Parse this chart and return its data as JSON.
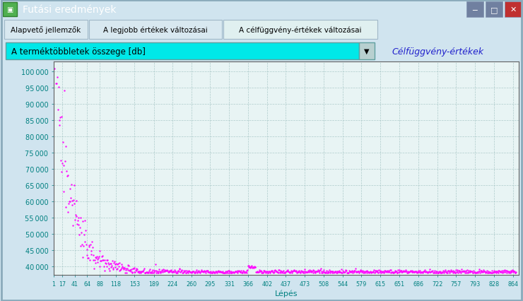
{
  "title": "Futási eredmények",
  "dropdown_label": "A terméktöbbletek összege [db]",
  "legend_label": "Célfüggvény-értékek",
  "xlabel": "Lépés",
  "tab_labels": [
    "Alapvető jellemzők",
    "A legjobb értékek változásai",
    "A célfüggvény-értékek változásai"
  ],
  "xtick_vals": [
    1,
    17,
    41,
    64,
    88,
    118,
    153,
    189,
    224,
    260,
    295,
    331,
    366,
    402,
    437,
    473,
    508,
    544,
    579,
    615,
    651,
    686,
    722,
    757,
    793,
    828,
    864
  ],
  "ytick_vals": [
    40000,
    45000,
    50000,
    55000,
    60000,
    65000,
    70000,
    75000,
    80000,
    85000,
    90000,
    95000,
    100000
  ],
  "ylim": [
    37500,
    103000
  ],
  "xlim": [
    1,
    875
  ],
  "plot_color": "#FF00FF",
  "plot_bg": "#E8F4F4",
  "outer_bg": "#D0E4EF",
  "titlebar_bg": "#1A5EA8",
  "titlebar_text": "white",
  "tab_bg_inactive": "#D8E8F0",
  "tab_bg_active": "#E0F0F0",
  "tab_border": "#A0B8C8",
  "dropdown_bg": "#00E8E8",
  "dropdown_border": "#60A0A0",
  "legend_text_color": "#2020CC",
  "tick_color": "#008080",
  "xlabel_color": "#008080",
  "grid_color": "#A0C0C0",
  "grid_style": "--",
  "data_peak": 106000,
  "data_floor": 38500,
  "decay_tau": 30,
  "n_points": 870
}
